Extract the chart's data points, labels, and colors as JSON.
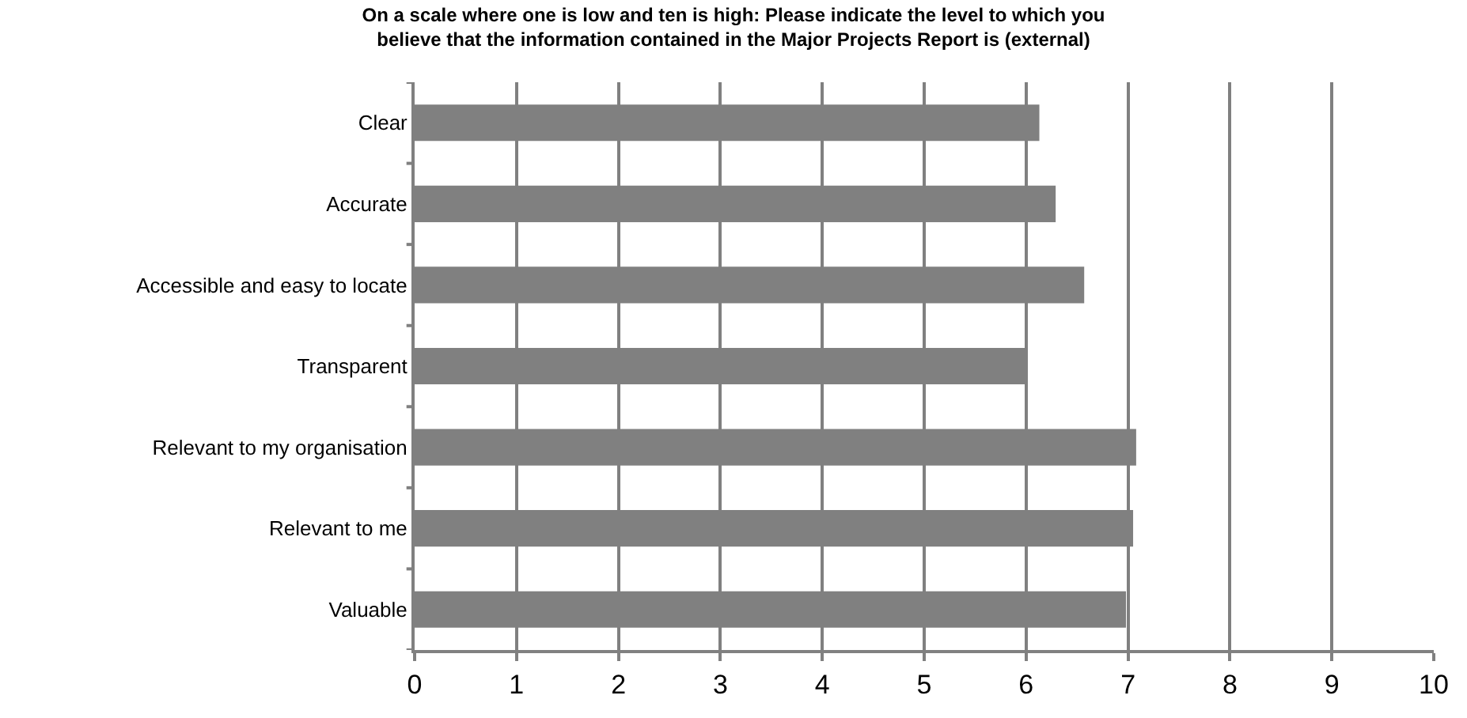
{
  "chart_data": {
    "type": "bar",
    "orientation": "horizontal",
    "title": "On a scale where one is low and ten is high: Please indicate the level to which you\nbelieve that the information contained in the Major Projects Report is (external)",
    "categories": [
      "Clear",
      "Accurate",
      "Accessible and easy to locate",
      "Transparent",
      "Relevant to my organisation",
      "Relevant to me",
      "Valuable"
    ],
    "values": [
      6.13,
      6.29,
      6.57,
      6.0,
      7.08,
      7.05,
      6.98
    ],
    "color": "#808080",
    "xlim": [
      0,
      10
    ],
    "xticks": [
      0,
      1,
      2,
      3,
      4,
      5,
      6,
      7,
      8,
      9,
      10
    ],
    "grid": "x",
    "legend": false
  }
}
